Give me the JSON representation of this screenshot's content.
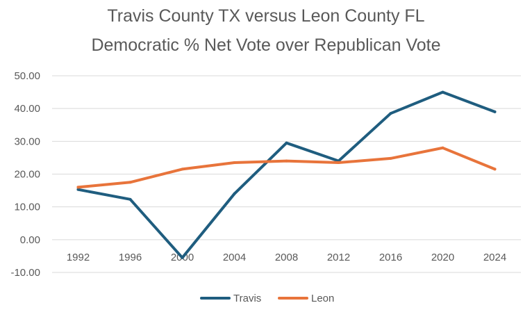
{
  "chart_data": {
    "type": "line",
    "title_line1": "Travis County TX versus Leon County FL",
    "title_line2": "Democratic % Net Vote over Republican Vote",
    "categories": [
      "1992",
      "1996",
      "2000",
      "2004",
      "2008",
      "2012",
      "2016",
      "2020",
      "2024"
    ],
    "series": [
      {
        "name": "Travis",
        "color": "#1f5d7f",
        "values": [
          15.3,
          12.3,
          -5.5,
          14.0,
          29.5,
          24.0,
          38.5,
          45.0,
          39.0
        ]
      },
      {
        "name": "Leon",
        "color": "#e8743b",
        "values": [
          16.0,
          17.5,
          21.5,
          23.5,
          24.0,
          23.5,
          24.8,
          28.0,
          21.5
        ]
      }
    ],
    "ylim": [
      -10,
      50
    ],
    "yticks": [
      "50.00",
      "40.00",
      "30.00",
      "20.00",
      "10.00",
      "0.00",
      "-10.00"
    ],
    "grid": true,
    "legend_position": "bottom"
  }
}
